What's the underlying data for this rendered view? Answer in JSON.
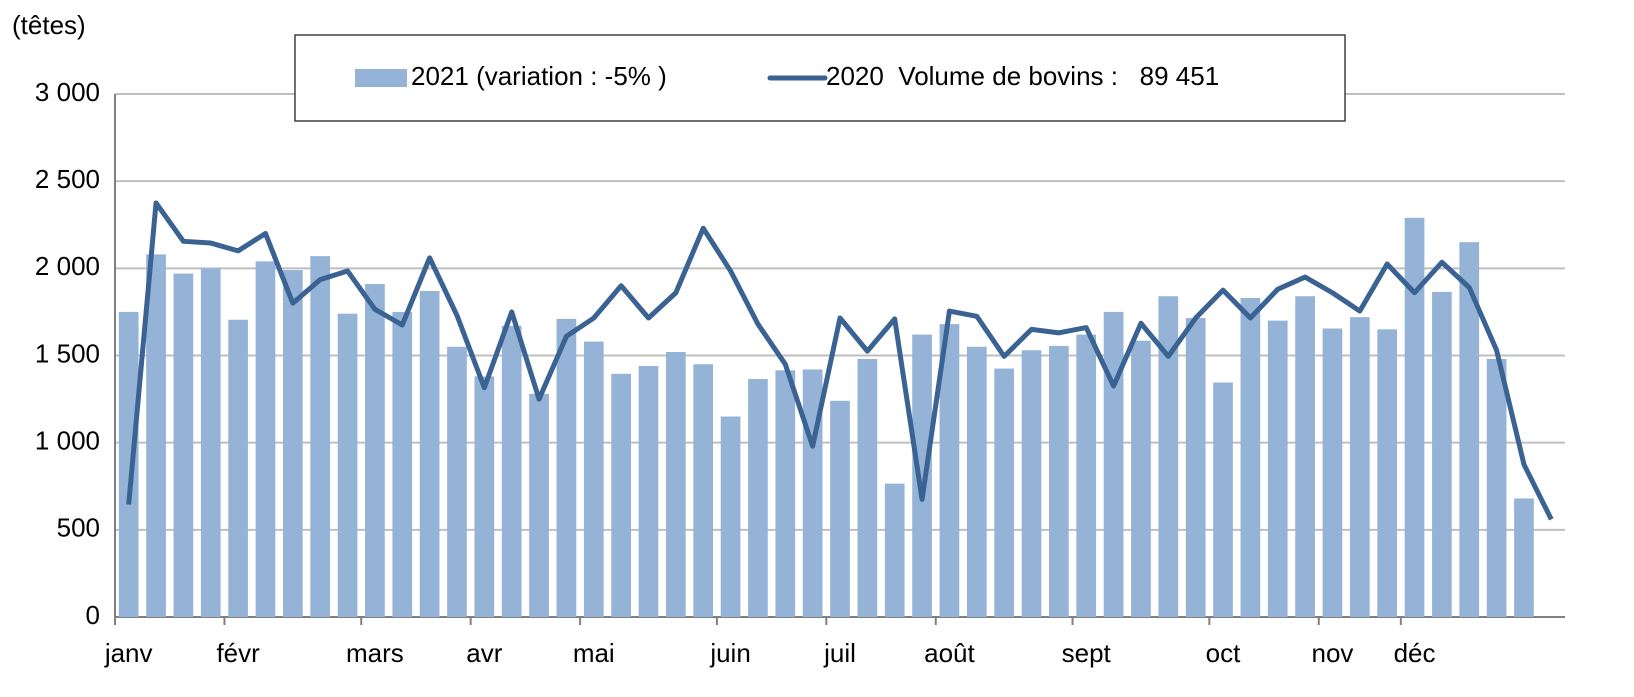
{
  "chart_data": {
    "type": "bar_line",
    "y_label": "(têtes)",
    "categories": [
      "janv",
      null,
      null,
      null,
      "févr",
      null,
      null,
      null,
      null,
      "mars",
      null,
      null,
      null,
      "avr",
      null,
      null,
      null,
      "mai",
      null,
      null,
      null,
      null,
      "juin",
      null,
      null,
      null,
      "juil",
      null,
      null,
      null,
      "août",
      null,
      null,
      null,
      null,
      "sept",
      null,
      null,
      null,
      null,
      "oct",
      null,
      null,
      null,
      "nov",
      null,
      null,
      "déc",
      null,
      null,
      null,
      null,
      null
    ],
    "series": [
      {
        "name": "2021 (variation : -5% )",
        "color": "#95b3d7",
        "kind": "bar",
        "values": [
          1750,
          2080,
          1970,
          2000,
          1705,
          2040,
          1990,
          2070,
          1740,
          1910,
          1750,
          1870,
          1550,
          1380,
          1670,
          1280,
          1710,
          1580,
          1395,
          1440,
          1520,
          1450,
          1150,
          1365,
          1415,
          1420,
          1240,
          1480,
          765,
          1620,
          1680,
          1550,
          1425,
          1530,
          1555,
          1620,
          1750,
          1585,
          1840,
          1715,
          1345,
          1830,
          1700,
          1840,
          1655,
          1720,
          1650,
          2290,
          1865,
          2150,
          1480,
          680,
          null
        ]
      },
      {
        "name": "2020  Volume de bovins :   89 451",
        "color": "#3a6393",
        "kind": "line",
        "values": [
          645,
          2375,
          2155,
          2145,
          2100,
          2200,
          1800,
          1935,
          1985,
          1765,
          1675,
          2060,
          1730,
          1315,
          1750,
          1250,
          1610,
          1715,
          1900,
          1715,
          1860,
          2230,
          1985,
          1680,
          1450,
          980,
          1715,
          1525,
          1710,
          675,
          1755,
          1725,
          1495,
          1650,
          1630,
          1660,
          1325,
          1685,
          1495,
          1715,
          1875,
          1715,
          1880,
          1950,
          1860,
          1755,
          2025,
          1860,
          2035,
          1890,
          1530,
          875,
          560
        ]
      }
    ],
    "ylim": [
      0,
      3000
    ],
    "yticks": [
      0,
      500,
      {
        "value": 1000,
        "label": "1 000"
      },
      {
        "value": 1500,
        "label": "1 500"
      },
      {
        "value": 2000,
        "label": "2 000"
      },
      {
        "value": 2500,
        "label": "2 500"
      },
      {
        "value": 3000,
        "label": "3 000"
      }
    ],
    "grid": true
  }
}
